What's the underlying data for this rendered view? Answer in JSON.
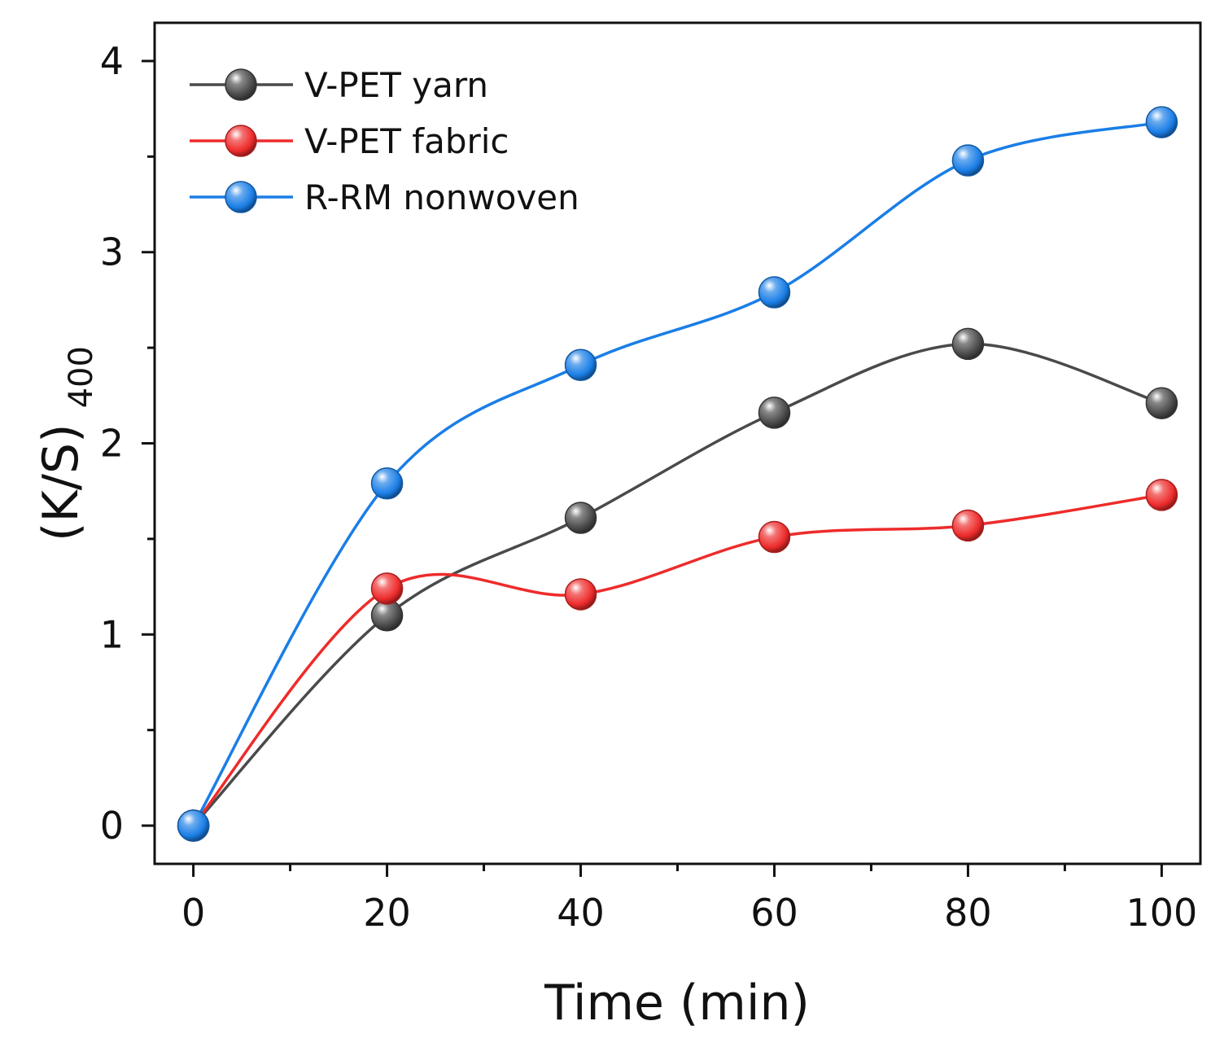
{
  "chart_data": {
    "type": "line",
    "title": "",
    "xlabel": "Time (min)",
    "ylabel_main": "(K/S)",
    "ylabel_sub": "400",
    "x": [
      0,
      20,
      40,
      60,
      80,
      100
    ],
    "xlim": [
      -4,
      104
    ],
    "ylim": [
      -0.2,
      4.2
    ],
    "xticks": [
      0,
      20,
      40,
      60,
      80,
      100
    ],
    "yticks": [
      0,
      1,
      2,
      3,
      4
    ],
    "xtick_labels": [
      "0",
      "20",
      "40",
      "60",
      "80",
      "100"
    ],
    "ytick_labels": [
      "0",
      "1",
      "2",
      "3",
      "4"
    ],
    "legend_position": "top-left",
    "series": [
      {
        "name": "V-PET yarn",
        "color": "#4a4a4a",
        "values": [
          0,
          1.1,
          1.61,
          2.16,
          2.52,
          2.21
        ]
      },
      {
        "name": "V-PET fabric",
        "color": "#ee2b2b",
        "values": [
          0,
          1.24,
          1.21,
          1.51,
          1.57,
          1.73
        ]
      },
      {
        "name": "R-RM nonwoven",
        "color": "#1a7ee6",
        "values": [
          0,
          1.79,
          2.41,
          2.79,
          3.48,
          3.68
        ]
      }
    ]
  }
}
